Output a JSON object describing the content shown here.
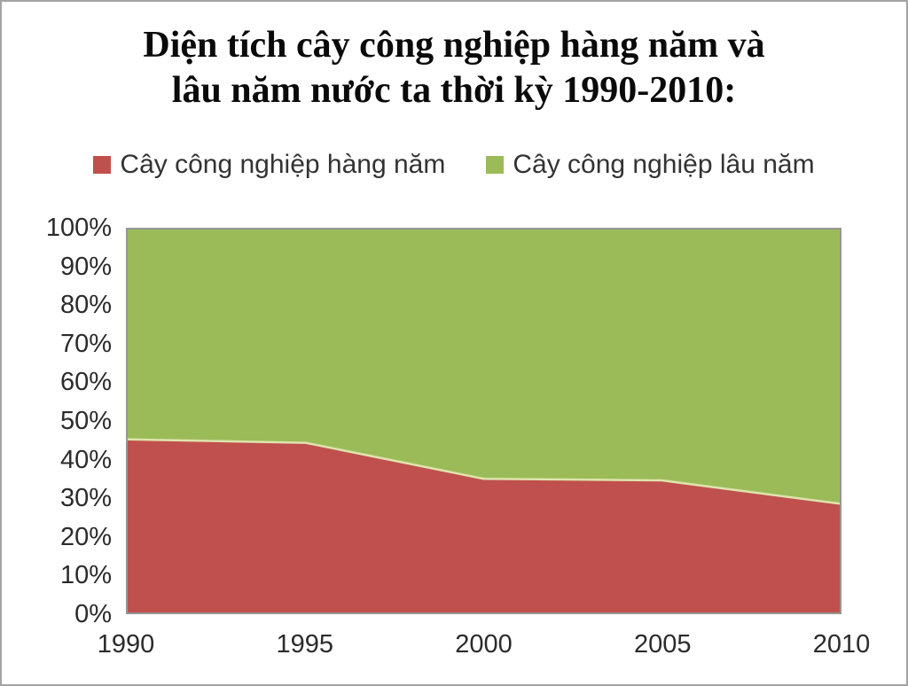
{
  "title": {
    "line1": "Diện tích cây công nghiệp hàng năm và",
    "line2": "lâu năm nước ta thời kỳ 1990-2010:"
  },
  "legend": {
    "items": [
      {
        "label": "Cây công nghiệp hàng năm",
        "color": "#c0504d"
      },
      {
        "label": "Cây công nghiệp lâu năm",
        "color": "#9bbb59"
      }
    ]
  },
  "chart_data": {
    "type": "area",
    "stacked": true,
    "stacking": "percent",
    "title": "Diện tích cây công nghiệp hàng năm và lâu năm nước ta thời kỳ 1990-2010:",
    "categories": [
      "1990",
      "1995",
      "2000",
      "2005",
      "2010"
    ],
    "series": [
      {
        "name": "Cây công nghiệp hàng năm",
        "color": "#c0504d",
        "values": [
          45.2,
          44.3,
          34.9,
          34.5,
          28.4
        ]
      },
      {
        "name": "Cây công nghiệp lâu năm",
        "color": "#9bbb59",
        "values": [
          54.8,
          55.7,
          65.1,
          65.5,
          71.6
        ]
      }
    ],
    "y_ticks": [
      "0%",
      "10%",
      "20%",
      "30%",
      "40%",
      "50%",
      "60%",
      "70%",
      "80%",
      "90%",
      "100%"
    ],
    "ylim": [
      0,
      100
    ],
    "xlabel": "",
    "ylabel": "",
    "grid": false,
    "legend_position": "top",
    "plot_border_color": "#969696",
    "boundary_line_color": "#dfe3ad"
  }
}
